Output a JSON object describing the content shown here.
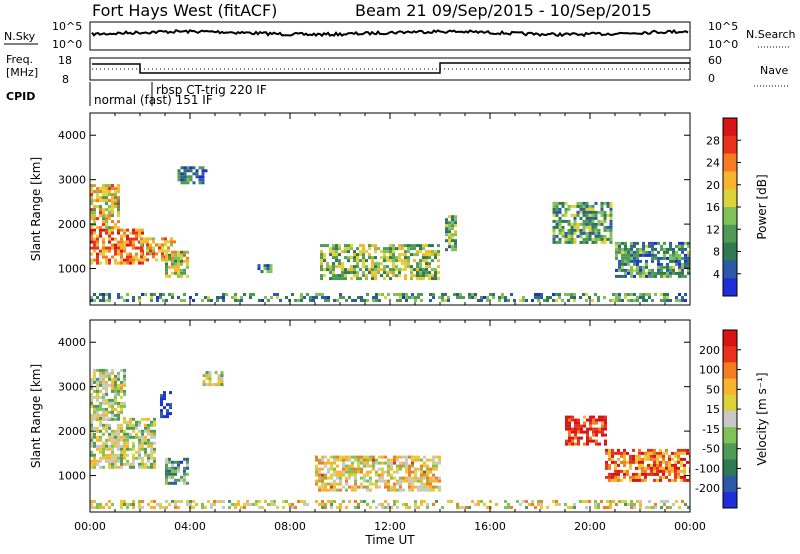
{
  "header": {
    "title_left": "Fort Hays West (fitACF)",
    "title_right": "Beam 21  09/Sep/2015 - 10/Sep/2015"
  },
  "top_panels": {
    "nsky_label": "N.Sky",
    "nsky_ticks": [
      "10^5",
      "10^0"
    ],
    "nsearch_label": "N.Search",
    "nsearch_ticks": [
      "10^5",
      "10^0"
    ],
    "freq_label_1": "Freq.",
    "freq_label_2": "[MHz]",
    "freq_ticks": [
      "18",
      "8"
    ],
    "nave_label": "Nave",
    "nave_ticks": [
      "60",
      "0"
    ],
    "cpid_label": "CPID",
    "cpid_modes": [
      "normal (fast) 151 IF",
      "rbsp CT-trig 220 IF"
    ]
  },
  "chart_data": [
    {
      "type": "heatmap",
      "title": "",
      "xlabel": "",
      "ylabel": "Slant Range [km]",
      "xlim": [
        0,
        24
      ],
      "ylim": [
        180,
        4500
      ],
      "x_ticks": [
        "00:00",
        "04:00",
        "08:00",
        "12:00",
        "16:00",
        "20:00",
        "00:00"
      ],
      "y_ticks": [
        "1000",
        "2000",
        "3000",
        "4000"
      ],
      "colorbar": {
        "label": "Power [dB]",
        "ticks": [
          "4",
          "8",
          "12",
          "16",
          "20",
          "24",
          "28"
        ],
        "colors": [
          "#1f2fd8",
          "#2d5aa8",
          "#2f7a52",
          "#4f9a56",
          "#7fc25a",
          "#dcd23a",
          "#f7b52f",
          "#f57c20",
          "#e8321c",
          "#d81414"
        ]
      },
      "blobs": [
        {
          "t0": 0.0,
          "t1": 2.1,
          "r0": 1150,
          "r1": 1900,
          "v": 0.75
        },
        {
          "t0": 0.0,
          "t1": 1.1,
          "r0": 1900,
          "r1": 2900,
          "v": 0.6
        },
        {
          "t0": 2.0,
          "t1": 3.4,
          "r0": 1200,
          "r1": 1700,
          "v": 0.65
        },
        {
          "t0": 3.0,
          "t1": 3.9,
          "r0": 800,
          "r1": 1400,
          "v": 0.5
        },
        {
          "t0": 3.5,
          "t1": 4.6,
          "r0": 2950,
          "r1": 3300,
          "v": 0.2
        },
        {
          "t0": 6.7,
          "t1": 7.3,
          "r0": 900,
          "r1": 1100,
          "v": 0.3
        },
        {
          "t0": 9.2,
          "t1": 14.0,
          "r0": 750,
          "r1": 1550,
          "v": 0.45
        },
        {
          "t0": 14.2,
          "t1": 14.6,
          "r0": 1400,
          "r1": 2200,
          "v": 0.4
        },
        {
          "t0": 18.5,
          "t1": 20.8,
          "r0": 1600,
          "r1": 2500,
          "v": 0.35
        },
        {
          "t0": 21.0,
          "t1": 24.0,
          "r0": 850,
          "r1": 1600,
          "v": 0.3
        },
        {
          "t0": 0.0,
          "t1": 24.0,
          "r0": 250,
          "r1": 450,
          "v": 0.3
        }
      ]
    },
    {
      "type": "heatmap",
      "title": "",
      "xlabel": "Time UT",
      "ylabel": "Slant Range [km]",
      "xlim": [
        0,
        24
      ],
      "ylim": [
        180,
        4500
      ],
      "x_ticks": [
        "00:00",
        "04:00",
        "08:00",
        "12:00",
        "16:00",
        "20:00",
        "00:00"
      ],
      "y_ticks": [
        "1000",
        "2000",
        "3000",
        "4000"
      ],
      "colorbar": {
        "label": "Velocity [m s⁻¹]",
        "ticks": [
          "200",
          "100",
          "50",
          "15",
          "-15",
          "-50",
          "-100",
          "-200"
        ],
        "colors": [
          "#1f2fd8",
          "#2d5aa8",
          "#2f7a52",
          "#4f9a56",
          "#7fc25a",
          "#c8c8c8",
          "#dcd23a",
          "#f7b52f",
          "#f57c20",
          "#e8321c",
          "#d81414"
        ]
      },
      "blobs": [
        {
          "t0": 0.0,
          "t1": 2.6,
          "r0": 1200,
          "r1": 2300,
          "v": 0.5
        },
        {
          "t0": 0.0,
          "t1": 1.4,
          "r0": 2300,
          "r1": 3400,
          "v": 0.5
        },
        {
          "t0": 3.0,
          "t1": 3.9,
          "r0": 800,
          "r1": 1400,
          "v": 0.3
        },
        {
          "t0": 2.8,
          "t1": 3.2,
          "r0": 2300,
          "r1": 2900,
          "v": 0.05
        },
        {
          "t0": 4.5,
          "t1": 5.3,
          "r0": 3050,
          "r1": 3350,
          "v": 0.5
        },
        {
          "t0": 9.0,
          "t1": 14.0,
          "r0": 700,
          "r1": 1450,
          "v": 0.6
        },
        {
          "t0": 19.0,
          "t1": 20.6,
          "r0": 1700,
          "r1": 2350,
          "v": 0.95
        },
        {
          "t0": 20.6,
          "t1": 24.0,
          "r0": 900,
          "r1": 1600,
          "v": 0.8
        },
        {
          "t0": 0.0,
          "t1": 24.0,
          "r0": 250,
          "r1": 450,
          "v": 0.55
        }
      ]
    }
  ]
}
